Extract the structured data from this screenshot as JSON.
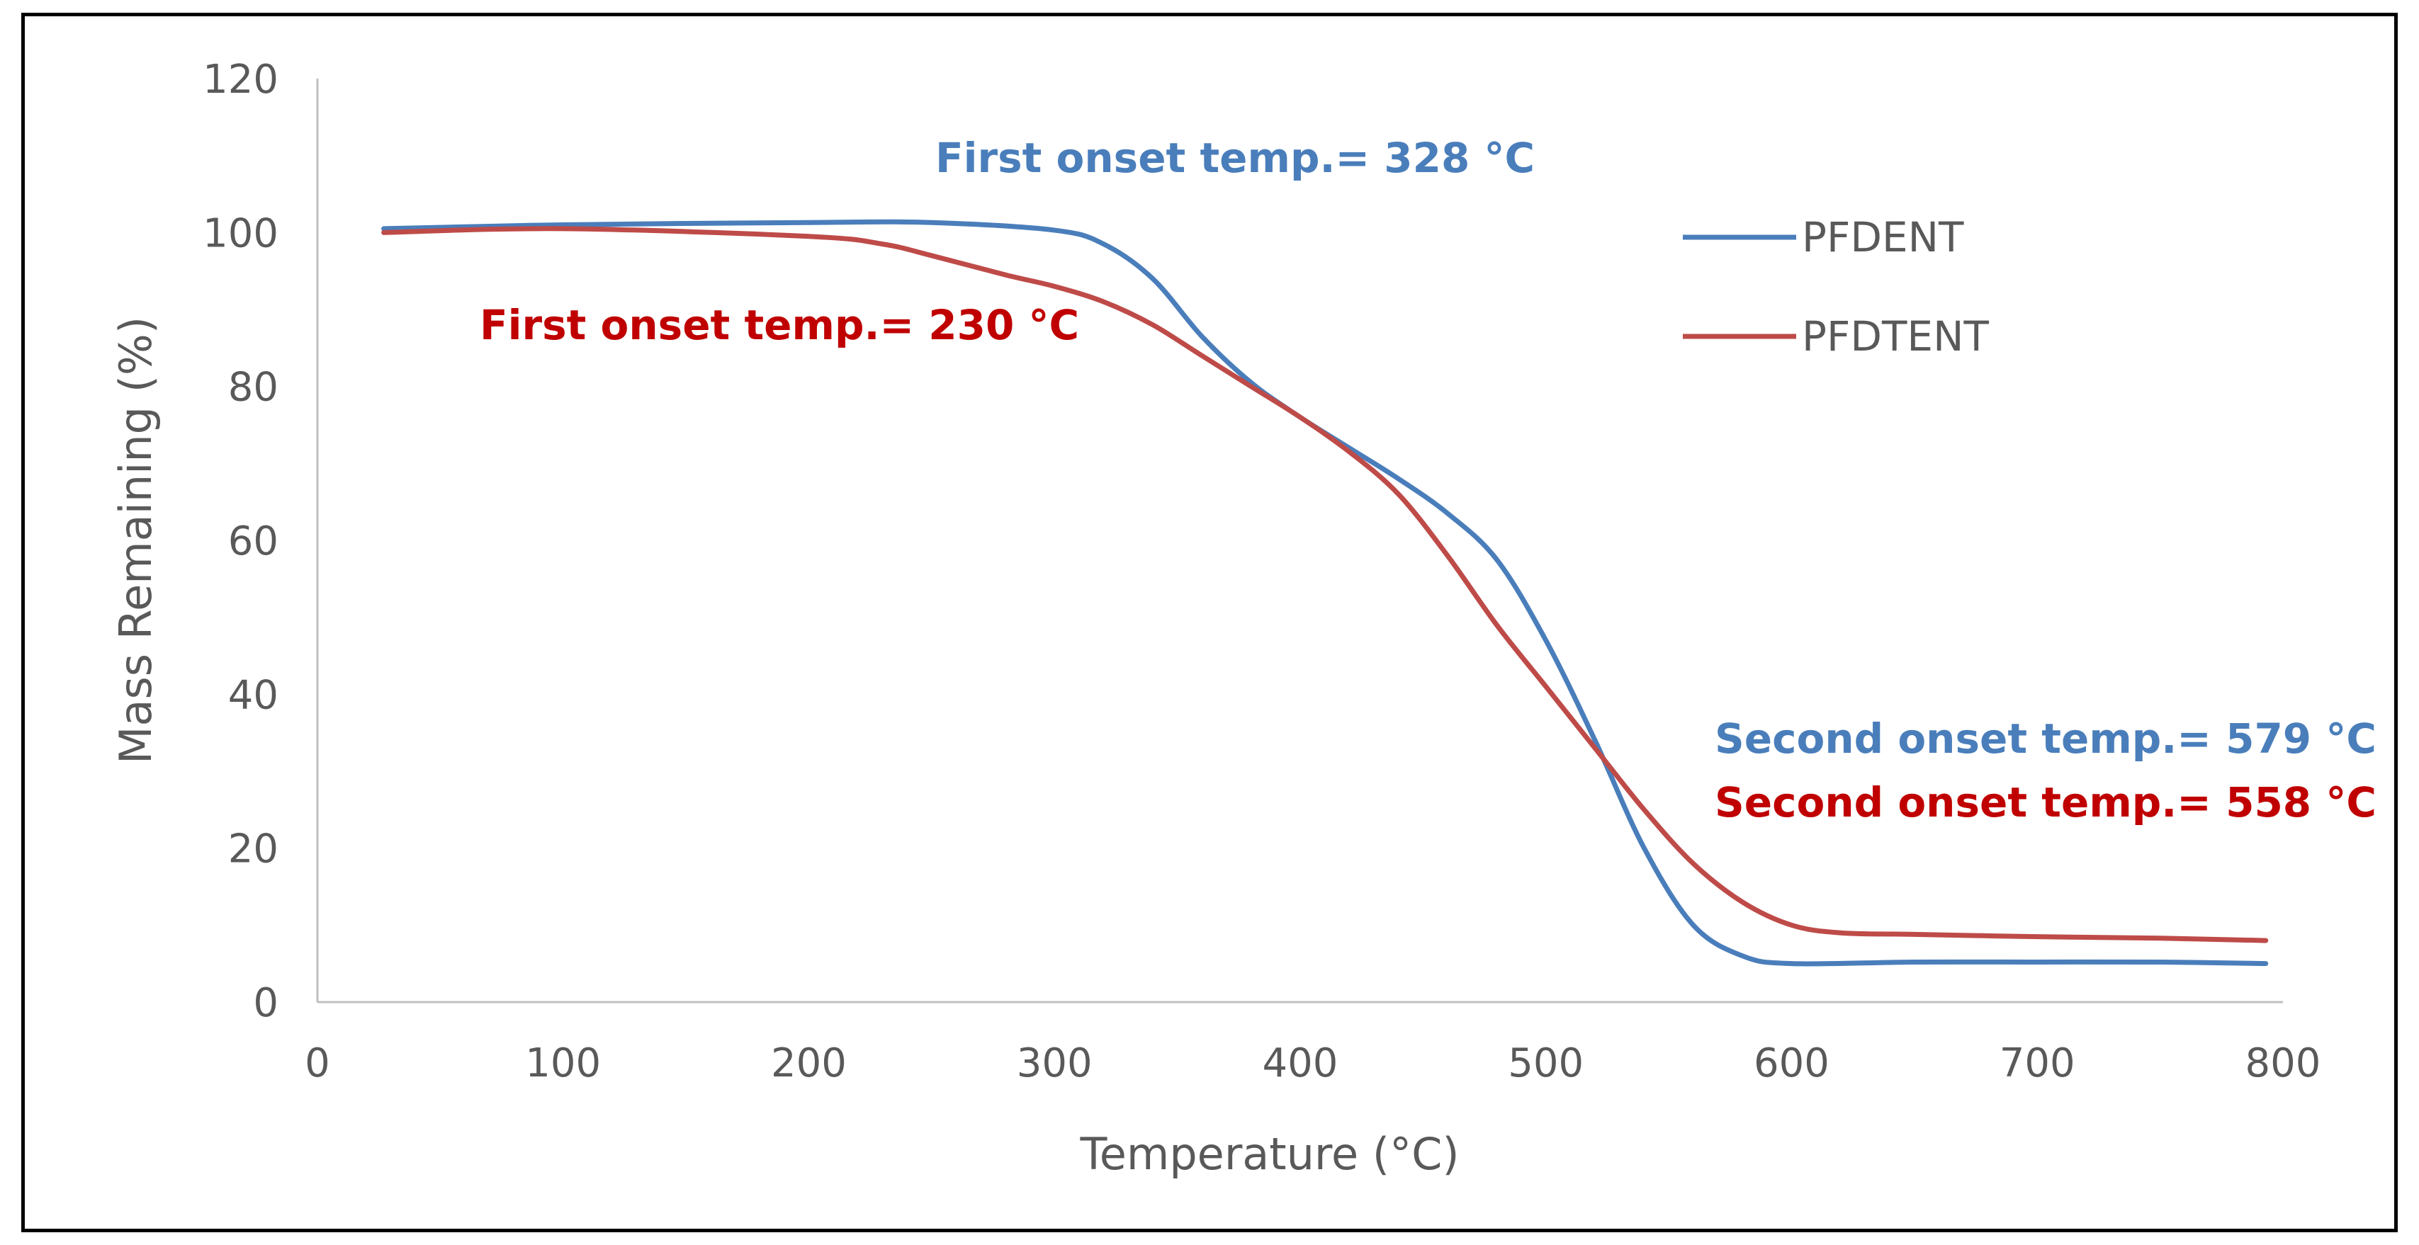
{
  "chart_data": {
    "type": "line",
    "title": "",
    "xlabel": "Temperature  (°C)",
    "ylabel": "Mass Remaining (%)",
    "xlim": [
      0,
      800
    ],
    "ylim": [
      0,
      120
    ],
    "x_ticks": [
      0,
      100,
      200,
      300,
      400,
      500,
      600,
      700,
      800
    ],
    "y_ticks": [
      0,
      20,
      40,
      60,
      80,
      100,
      120
    ],
    "grid": false,
    "legend_position": "top-right",
    "series": [
      {
        "name": "PFDENT",
        "color": "#4a7ebb",
        "x": [
          27,
          100,
          200,
          250,
          300,
          320,
          340,
          360,
          380,
          400,
          420,
          440,
          460,
          480,
          500,
          520,
          540,
          560,
          580,
          600,
          650,
          700,
          750,
          793
        ],
        "y": [
          100.5,
          101,
          101.3,
          101.3,
          100.3,
          98.5,
          94,
          86.5,
          80.5,
          76,
          72,
          68,
          63.5,
          57.5,
          47,
          34,
          20,
          10,
          6,
          5,
          5.2,
          5.2,
          5.2,
          5
        ]
      },
      {
        "name": "PFDTENT",
        "color": "#be4b48",
        "x": [
          27,
          100,
          200,
          230,
          250,
          280,
          300,
          320,
          340,
          360,
          380,
          400,
          420,
          440,
          460,
          480,
          500,
          520,
          540,
          560,
          580,
          600,
          620,
          650,
          700,
          750,
          793
        ],
        "y": [
          100,
          100.5,
          99.5,
          98.5,
          97,
          94.5,
          93,
          91,
          88,
          84,
          80,
          76,
          71.5,
          66,
          58,
          49,
          41,
          33,
          25,
          18,
          13,
          10,
          9,
          8.8,
          8.5,
          8.3,
          8
        ]
      }
    ],
    "annotations": [
      {
        "text": "First onset  temp.= 328 °C",
        "color": "#4a7ebb"
      },
      {
        "text": "First onset  temp.= 230 °C",
        "color": "#c00000"
      },
      {
        "text": "Second  onset temp.= 579 °C",
        "color": "#4a7ebb"
      },
      {
        "text": "Second  onset temp.= 558 °C",
        "color": "#c00000"
      }
    ]
  }
}
